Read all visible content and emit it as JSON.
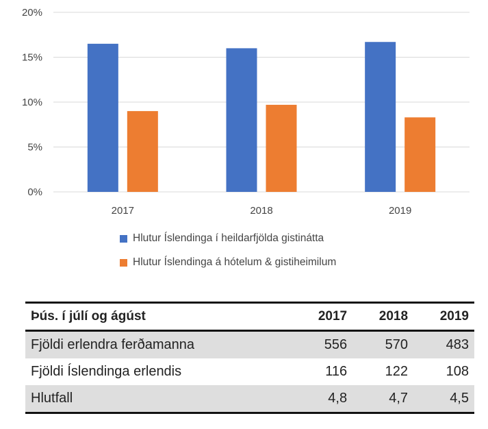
{
  "chart_data": {
    "type": "bar",
    "categories": [
      "2017",
      "2018",
      "2019"
    ],
    "series": [
      {
        "name": "Hlutur Íslendinga í heildarfjölda gistinátta",
        "color": "#4472c4",
        "values": [
          16.5,
          16.0,
          16.7
        ]
      },
      {
        "name": "Hlutur Íslendinga á hótelum & gistiheimilum",
        "color": "#ed7d31",
        "values": [
          9.0,
          9.7,
          8.3
        ]
      }
    ],
    "ylim": [
      0,
      20
    ],
    "yticks": [
      "0%",
      "5%",
      "10%",
      "15%",
      "20%"
    ],
    "ytick_values": [
      0,
      5,
      10,
      15,
      20
    ],
    "grid": true,
    "legend": "bottom"
  },
  "table": {
    "header": [
      "Þús. í júlí og ágúst",
      "2017",
      "2018",
      "2019"
    ],
    "rows": [
      {
        "label": "Fjöldi erlendra ferðamanna",
        "values": [
          "556",
          "570",
          "483"
        ]
      },
      {
        "label": "Fjöldi Íslendinga erlendis",
        "values": [
          "116",
          "122",
          "108"
        ]
      },
      {
        "label": "Hlutfall",
        "values": [
          "4,8",
          "4,7",
          "4,5"
        ]
      }
    ]
  }
}
